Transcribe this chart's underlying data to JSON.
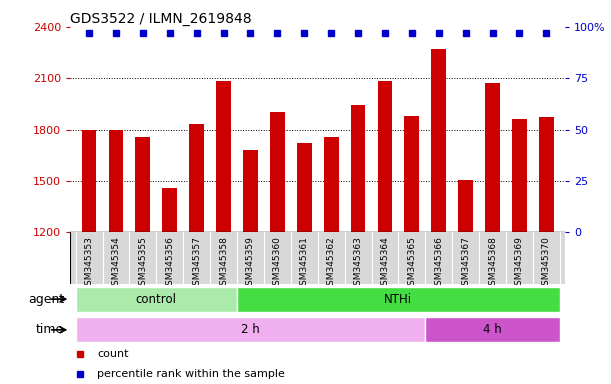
{
  "title": "GDS3522 / ILMN_2619848",
  "samples": [
    "GSM345353",
    "GSM345354",
    "GSM345355",
    "GSM345356",
    "GSM345357",
    "GSM345358",
    "GSM345359",
    "GSM345360",
    "GSM345361",
    "GSM345362",
    "GSM345363",
    "GSM345364",
    "GSM345365",
    "GSM345366",
    "GSM345367",
    "GSM345368",
    "GSM345369",
    "GSM345370"
  ],
  "counts": [
    1800,
    1800,
    1755,
    1460,
    1835,
    2085,
    1680,
    1905,
    1720,
    1755,
    1945,
    2085,
    1880,
    2270,
    1505,
    2075,
    1860,
    1875
  ],
  "percentile_ranks": [
    97,
    97,
    97,
    95,
    97,
    97,
    97,
    97,
    97,
    97,
    97,
    97,
    97,
    97,
    97,
    97,
    97,
    97
  ],
  "bar_color": "#cc0000",
  "dot_color": "#0000cc",
  "ylim_left": [
    1200,
    2400
  ],
  "ylim_right": [
    0,
    100
  ],
  "yticks_left": [
    1200,
    1500,
    1800,
    2100,
    2400
  ],
  "yticks_right": [
    0,
    25,
    50,
    75,
    100
  ],
  "ylabel_left_color": "#cc0000",
  "ylabel_right_color": "#0000cc",
  "grid_values": [
    1500,
    1800,
    2100
  ],
  "bar_bottom": 1200,
  "agent_groups": [
    {
      "label": "control",
      "start": 0,
      "end": 5,
      "color": "#aaeaaa"
    },
    {
      "label": "NTHi",
      "start": 6,
      "end": 17,
      "color": "#44dd44"
    }
  ],
  "time_groups": [
    {
      "label": "2 h",
      "start": 0,
      "end": 12,
      "color": "#f0b0f0"
    },
    {
      "label": "4 h",
      "start": 13,
      "end": 17,
      "color": "#cc55cc"
    }
  ],
  "legend_items": [
    {
      "label": "count",
      "color": "#cc0000",
      "marker": "s"
    },
    {
      "label": "percentile rank within the sample",
      "color": "#0000cc",
      "marker": "s"
    }
  ],
  "bg_color": "#ffffff",
  "plot_bg": "#ffffff",
  "label_bg": "#d8d8d8",
  "n_control": 6,
  "n_time1": 13
}
